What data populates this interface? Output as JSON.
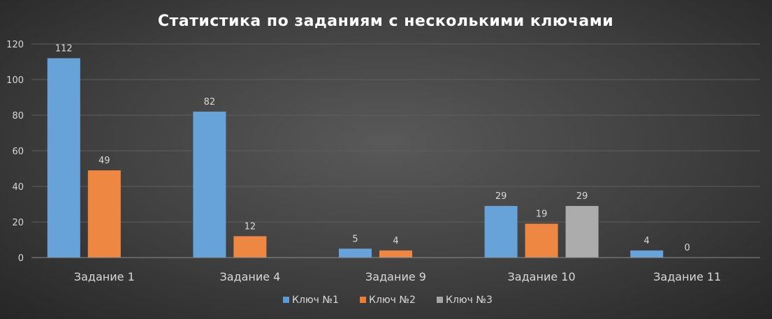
{
  "chart_data": {
    "type": "bar",
    "title": "Статистика по заданиям с несколькими ключами",
    "xlabel": "",
    "ylabel": "",
    "categories": [
      "Задание 1",
      "Задание 4",
      "Задание 9",
      "Задание 10",
      "Задание 11"
    ],
    "series": [
      {
        "name": "Ключ №1",
        "values": [
          112,
          82,
          5,
          29,
          4
        ],
        "color": "#5b9bd5"
      },
      {
        "name": "Ключ №2",
        "values": [
          49,
          12,
          4,
          19,
          0
        ],
        "color": "#ed7d31"
      },
      {
        "name": "Ключ №3",
        "values": [
          null,
          null,
          null,
          29,
          null
        ],
        "color": "#a5a5a5"
      }
    ],
    "ylim": [
      0,
      120
    ],
    "yticks": [
      0,
      20,
      40,
      60,
      80,
      100,
      120
    ],
    "grid": true,
    "legend": "bottom"
  }
}
